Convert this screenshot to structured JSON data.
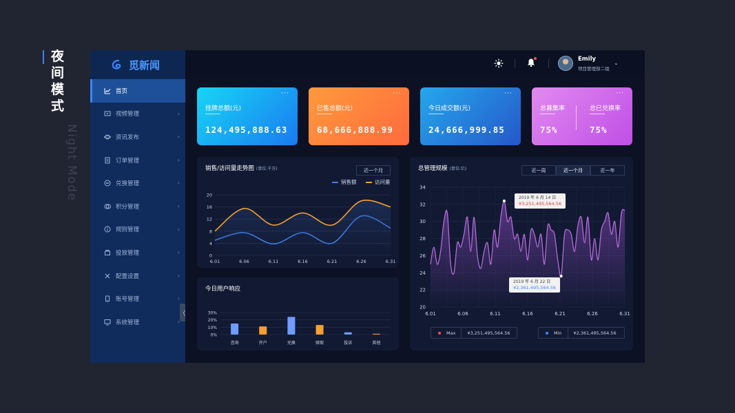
{
  "caption": {
    "title_cn": "夜间模式",
    "title_en": "Night Mode"
  },
  "brand": {
    "name": "觅新闻"
  },
  "sidebar": {
    "items": [
      {
        "label": "首页",
        "active": true,
        "icon": "chart-line-icon"
      },
      {
        "label": "视频管理",
        "icon": "video-icon"
      },
      {
        "label": "资讯发布",
        "icon": "planet-icon"
      },
      {
        "label": "订单管理",
        "icon": "document-icon"
      },
      {
        "label": "兑换管理",
        "icon": "exchange-icon"
      },
      {
        "label": "积分管理",
        "icon": "points-icon"
      },
      {
        "label": "规则管理",
        "icon": "info-icon"
      },
      {
        "label": "投放管理",
        "icon": "delivery-icon"
      },
      {
        "label": "配置设置",
        "icon": "tools-icon"
      },
      {
        "label": "账号管理",
        "icon": "phone-icon"
      },
      {
        "label": "系统管理",
        "icon": "monitor-icon"
      }
    ]
  },
  "header": {
    "user_name": "Emily",
    "user_role": "项目管理部二组"
  },
  "cards": [
    {
      "title": "挂牌总额(元)",
      "value": "124,495,888.63",
      "more": "···"
    },
    {
      "title": "已售总额(元)",
      "value": "68,666,888.99",
      "more": "···"
    },
    {
      "title": "今日成交额(元)",
      "value": "24,666,999.85",
      "more": "···"
    },
    {
      "title_left": "总募集率",
      "value_left": "75%",
      "title_right": "总已兑换率",
      "value_right": "75%",
      "more": "···"
    }
  ],
  "trend_panel": {
    "title": "销售/访问量走势图",
    "unit": "(单位:千万)",
    "period": "近一个月",
    "legend": [
      "销售额",
      "访问量"
    ]
  },
  "response_panel": {
    "title": "今日用户响应"
  },
  "scale_panel": {
    "title": "总管理规模",
    "unit": "(单位:亿)",
    "tabs": [
      "近一周",
      "近一个月",
      "近一年"
    ],
    "active_tab": 1,
    "tip_max": {
      "date": "2019 年 6 月 14 日",
      "value": "¥3,251,495,564.56"
    },
    "tip_min": {
      "date": "2019 年 6 月 22 日",
      "value": "¥2,361,495,564.56"
    },
    "max_label": "Max",
    "max_value": "¥3,251,495,564.56",
    "min_label": "Min",
    "min_value": "¥2,361,495,564.56"
  },
  "chart_data": [
    {
      "type": "line",
      "title": "销售/访问量走势图",
      "x_ticks": [
        "6.01",
        "6.06",
        "6.11",
        "6.16",
        "6.21",
        "6.26",
        "6.31"
      ],
      "x": [
        "6.01",
        "6.06",
        "6.11",
        "6.16",
        "6.21",
        "6.26",
        "6.31"
      ],
      "ylim": [
        0,
        20
      ],
      "y_ticks": [
        0,
        4,
        8,
        12,
        16,
        20
      ],
      "series": [
        {
          "name": "销售额",
          "color": "#3f7fe6",
          "values": [
            5,
            7.5,
            3.8,
            7.5,
            4,
            13,
            9
          ]
        },
        {
          "name": "访问量",
          "color": "#f5a030",
          "values": [
            8,
            15.5,
            10,
            14,
            10,
            18,
            16
          ]
        }
      ]
    },
    {
      "type": "bar",
      "title": "今日用户响应",
      "categories": [
        "咨询",
        "开户",
        "兑换",
        "赎取",
        "投诉",
        "其他"
      ],
      "values": [
        15,
        11,
        24,
        13,
        3,
        1
      ],
      "colors": [
        "#6e9cff",
        "#f5a030",
        "#6e9cff",
        "#f5a030",
        "#6e9cff",
        "#f5a030"
      ],
      "ylim": [
        0,
        30
      ],
      "y_ticks": [
        "0%",
        "10%",
        "20%",
        "30%"
      ]
    },
    {
      "type": "area",
      "title": "总管理规模",
      "x_ticks": [
        "6.01",
        "6.06",
        "6.11",
        "6.16",
        "6.21",
        "6.26",
        "6.31"
      ],
      "ylim": [
        20,
        34
      ],
      "y_ticks": [
        20,
        22,
        24,
        26,
        28,
        30,
        32,
        34
      ],
      "color": "#b66bd8",
      "values": [
        25,
        27,
        25,
        26.5,
        30,
        31,
        25,
        24,
        27.5,
        27,
        28.5,
        30.5,
        26.5,
        30.5,
        26,
        24.5,
        26.5,
        27.5,
        25,
        29,
        27,
        30.5,
        32.4,
        30,
        30.5,
        28,
        28.5,
        26.5,
        28.5,
        25.5,
        29,
        28.5,
        27,
        28.5,
        25,
        29.5,
        29,
        28.5,
        25.5,
        23.6,
        28.5,
        29,
        28.5,
        26.5,
        29.5,
        30.5,
        27.5,
        30.5,
        25.5,
        28,
        25.5,
        29,
        30,
        31,
        28.5,
        30,
        27,
        31,
        31.3
      ]
    }
  ]
}
